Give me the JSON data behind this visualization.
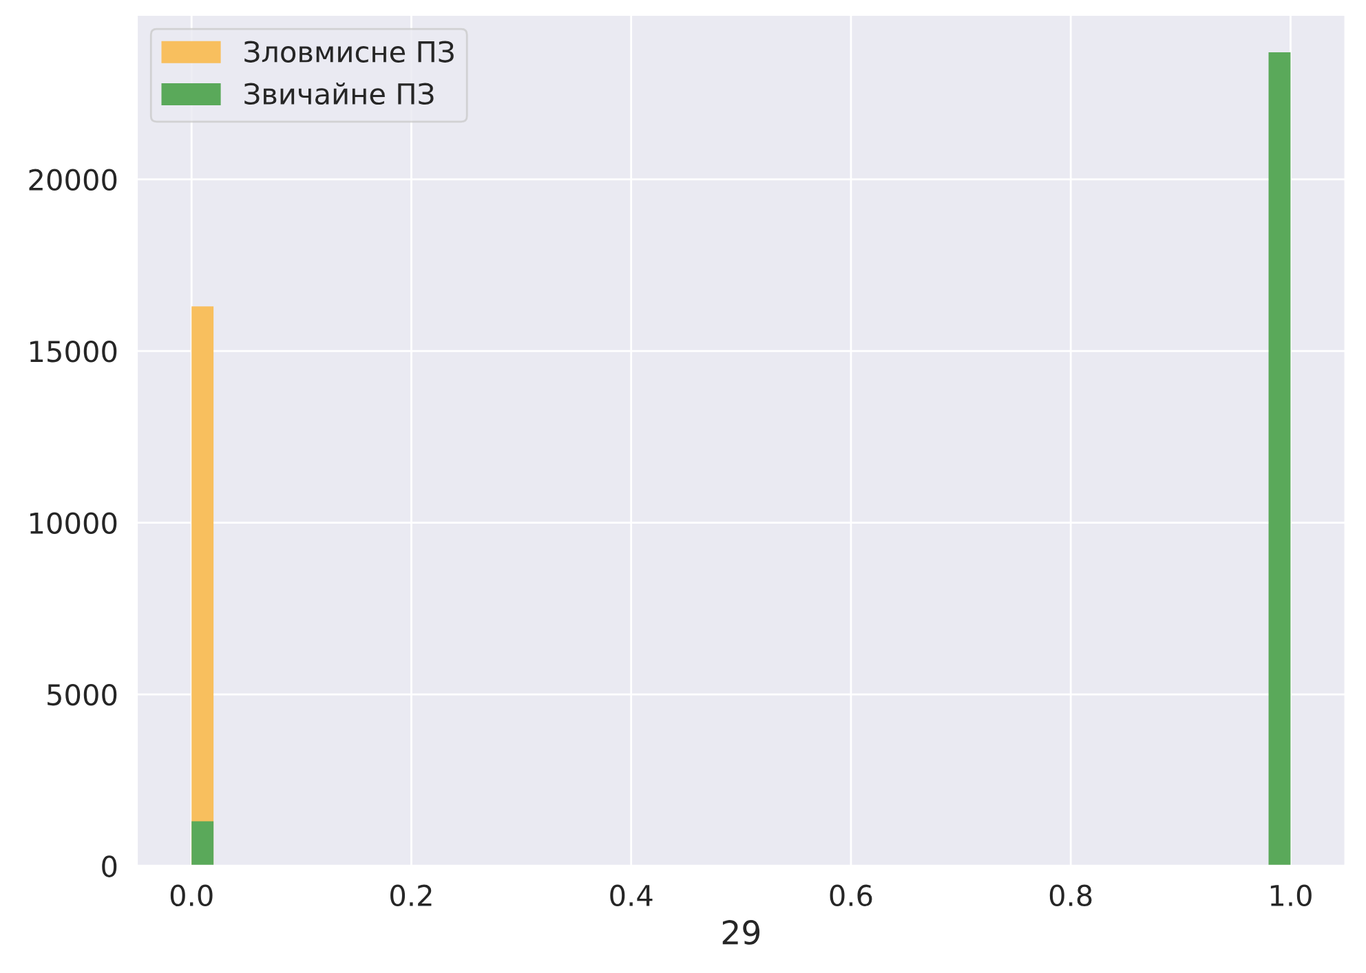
{
  "chart_data": {
    "type": "histogram",
    "xlabel": "29",
    "bins": [
      0,
      0.02,
      0.98,
      1.0
    ],
    "series": [
      {
        "name": "Зловмисне ПЗ",
        "color": "#f8bf5e",
        "values": [
          16300,
          0,
          0
        ]
      },
      {
        "name": "Звичайне ПЗ",
        "color": "#5aa95a",
        "values": [
          1300,
          0,
          23700
        ]
      }
    ],
    "xlim": [
      -0.05,
      1.05
    ],
    "xticks": [
      {
        "value": 0,
        "label": "0.0"
      },
      {
        "value": 0.2,
        "label": "0.2"
      },
      {
        "value": 0.4,
        "label": "0.4"
      },
      {
        "value": 0.6,
        "label": "0.6"
      },
      {
        "value": 0.8,
        "label": "0.8"
      },
      {
        "value": 1.0,
        "label": "1.0"
      }
    ],
    "ylim": [
      0,
      24800
    ],
    "yticks": [
      0,
      5000,
      10000,
      15000,
      20000
    ],
    "grid": true,
    "legend": "top left"
  }
}
